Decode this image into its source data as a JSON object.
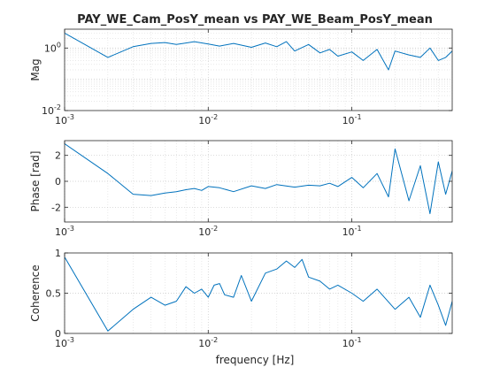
{
  "figure": {
    "title": "PAY_WE_Cam_PosY_mean vs PAY_WE_Beam_PosY_mean",
    "xlabel": "frequency [Hz]"
  },
  "chart_data": [
    {
      "type": "line",
      "panel": "magnitude",
      "ylabel": "Mag",
      "xscale": "log",
      "yscale": "log",
      "xlim": [
        0.001,
        0.5
      ],
      "ylim": [
        0.01,
        4
      ],
      "xticks": [
        0.001,
        0.01,
        0.1
      ],
      "xtick_labels": [
        {
          "base": "10",
          "exp": "-3"
        },
        {
          "base": "10",
          "exp": "-2"
        },
        {
          "base": "10",
          "exp": "-1"
        }
      ],
      "yticks": [
        0.01,
        1
      ],
      "ytick_labels": [
        {
          "base": "10",
          "exp": "-2"
        },
        {
          "base": "10",
          "exp": "0"
        }
      ],
      "grid": true,
      "color": "#0072bd",
      "x": [
        0.001,
        0.002,
        0.003,
        0.004,
        0.005,
        0.006,
        0.007,
        0.008,
        0.01,
        0.012,
        0.015,
        0.02,
        0.025,
        0.03,
        0.035,
        0.04,
        0.05,
        0.06,
        0.07,
        0.08,
        0.1,
        0.12,
        0.15,
        0.18,
        0.2,
        0.25,
        0.3,
        0.35,
        0.4,
        0.45,
        0.5
      ],
      "y": [
        3.0,
        0.5,
        1.1,
        1.4,
        1.5,
        1.3,
        1.45,
        1.6,
        1.35,
        1.15,
        1.4,
        1.05,
        1.45,
        1.1,
        1.6,
        0.8,
        1.3,
        0.7,
        0.9,
        0.55,
        0.75,
        0.4,
        0.9,
        0.2,
        0.8,
        0.6,
        0.5,
        1.0,
        0.4,
        0.5,
        0.8
      ]
    },
    {
      "type": "line",
      "panel": "phase",
      "ylabel": "Phase [rad]",
      "xscale": "log",
      "xlim": [
        0.001,
        0.5
      ],
      "ylim": [
        -3.14,
        3.14
      ],
      "xticks": [
        0.001,
        0.01,
        0.1
      ],
      "xtick_labels": [
        {
          "base": "10",
          "exp": "-3"
        },
        {
          "base": "10",
          "exp": "-2"
        },
        {
          "base": "10",
          "exp": "-1"
        }
      ],
      "yticks": [
        -2,
        0,
        2
      ],
      "ytick_labels": [
        "-2",
        "0",
        "2"
      ],
      "grid": true,
      "color": "#0072bd",
      "x": [
        0.001,
        0.002,
        0.003,
        0.004,
        0.005,
        0.006,
        0.007,
        0.008,
        0.009,
        0.01,
        0.012,
        0.015,
        0.02,
        0.025,
        0.03,
        0.04,
        0.05,
        0.06,
        0.07,
        0.08,
        0.1,
        0.12,
        0.15,
        0.18,
        0.2,
        0.25,
        0.3,
        0.35,
        0.4,
        0.45,
        0.5
      ],
      "y": [
        2.9,
        0.6,
        -1.0,
        -1.1,
        -0.9,
        -0.8,
        -0.65,
        -0.55,
        -0.7,
        -0.4,
        -0.5,
        -0.8,
        -0.35,
        -0.55,
        -0.25,
        -0.45,
        -0.3,
        -0.35,
        -0.15,
        -0.4,
        0.3,
        -0.5,
        0.6,
        -1.2,
        2.5,
        -1.5,
        1.2,
        -2.5,
        1.5,
        -1.0,
        0.8
      ]
    },
    {
      "type": "line",
      "panel": "coherence",
      "ylabel": "Coherence",
      "xscale": "log",
      "xlim": [
        0.001,
        0.5
      ],
      "ylim": [
        0,
        1
      ],
      "xticks": [
        0.001,
        0.01,
        0.1
      ],
      "xtick_labels": [
        {
          "base": "10",
          "exp": "-3"
        },
        {
          "base": "10",
          "exp": "-2"
        },
        {
          "base": "10",
          "exp": "-1"
        }
      ],
      "yticks": [
        0,
        0.5,
        1
      ],
      "ytick_labels": [
        "0",
        "0.5",
        "1"
      ],
      "grid": true,
      "color": "#0072bd",
      "x": [
        0.001,
        0.002,
        0.003,
        0.004,
        0.005,
        0.006,
        0.007,
        0.008,
        0.009,
        0.01,
        0.011,
        0.012,
        0.013,
        0.015,
        0.017,
        0.02,
        0.025,
        0.03,
        0.035,
        0.04,
        0.045,
        0.05,
        0.06,
        0.07,
        0.08,
        0.1,
        0.12,
        0.15,
        0.2,
        0.25,
        0.3,
        0.35,
        0.4,
        0.45,
        0.5
      ],
      "y": [
        0.95,
        0.03,
        0.3,
        0.45,
        0.35,
        0.4,
        0.58,
        0.5,
        0.55,
        0.45,
        0.6,
        0.62,
        0.48,
        0.45,
        0.72,
        0.4,
        0.75,
        0.8,
        0.9,
        0.82,
        0.92,
        0.7,
        0.65,
        0.55,
        0.6,
        0.5,
        0.4,
        0.55,
        0.3,
        0.45,
        0.2,
        0.6,
        0.35,
        0.1,
        0.4
      ]
    }
  ]
}
